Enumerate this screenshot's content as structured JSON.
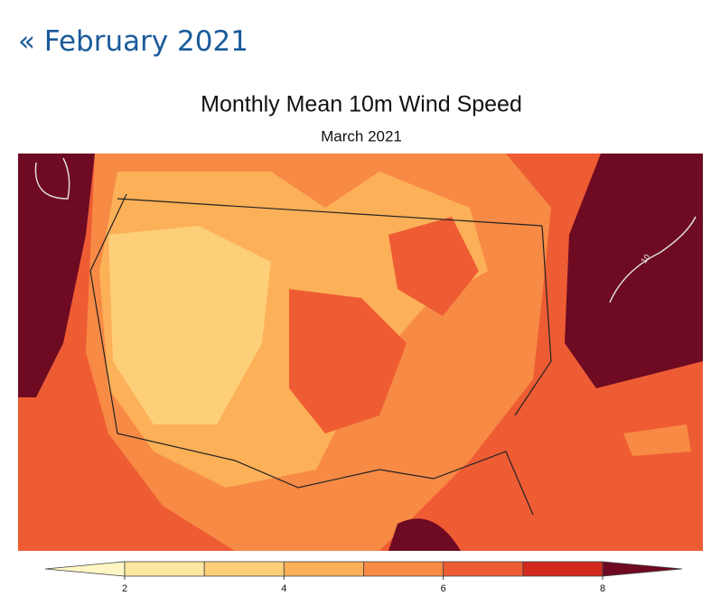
{
  "link": "« February 2021",
  "map": {
    "title": "Monthly Mean 10m Wind Speed",
    "subtitle": "March 2021",
    "contour_label": "10",
    "colorbar": {
      "ticks": [
        2,
        4,
        6,
        8
      ],
      "colors": [
        "#fff6c4",
        "#fee7a0",
        "#fdcf78",
        "#fcb058",
        "#f78a44",
        "#ee5c34",
        "#d22a1e",
        "#6e0a22"
      ]
    }
  }
}
